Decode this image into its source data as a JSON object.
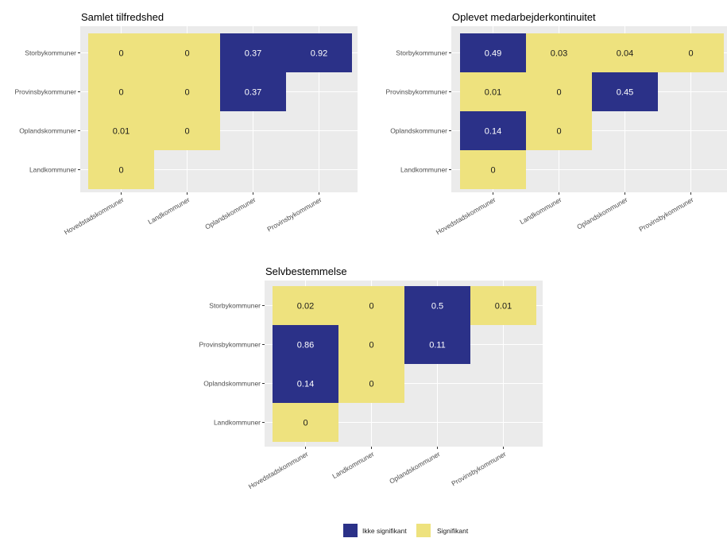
{
  "colors": {
    "panel_bg": "#ebebeb",
    "grid": "#ffffff",
    "ikke_signifikant": "#2b3188",
    "signifikant": "#eee27e",
    "axis_text": "#4d4d4d",
    "title_text": "#000000"
  },
  "legend": {
    "position": "bottom",
    "items": [
      {
        "label": "Ikke signifikant",
        "color": "#2b3188"
      },
      {
        "label": "Signifikant",
        "color": "#eee27e"
      }
    ]
  },
  "chart_data": [
    {
      "type": "heatmap",
      "title": "Samlet tilfredshed",
      "x_categories": [
        "Hovedstadskommuner",
        "Landkommuner",
        "Oplandskommuner",
        "Provinsbykommuner"
      ],
      "y_categories": [
        "Storbykommuner",
        "Provinsbykommuner",
        "Oplandskommuner",
        "Landkommuner"
      ],
      "cells": [
        {
          "x": "Hovedstadskommuner",
          "y": "Storbykommuner",
          "value": 0,
          "label": "0",
          "group": "Signifikant"
        },
        {
          "x": "Landkommuner",
          "y": "Storbykommuner",
          "value": 0,
          "label": "0",
          "group": "Signifikant"
        },
        {
          "x": "Oplandskommuner",
          "y": "Storbykommuner",
          "value": 0.37,
          "label": "0.37",
          "group": "Ikke signifikant"
        },
        {
          "x": "Provinsbykommuner",
          "y": "Storbykommuner",
          "value": 0.92,
          "label": "0.92",
          "group": "Ikke signifikant"
        },
        {
          "x": "Hovedstadskommuner",
          "y": "Provinsbykommuner",
          "value": 0,
          "label": "0",
          "group": "Signifikant"
        },
        {
          "x": "Landkommuner",
          "y": "Provinsbykommuner",
          "value": 0,
          "label": "0",
          "group": "Signifikant"
        },
        {
          "x": "Oplandskommuner",
          "y": "Provinsbykommuner",
          "value": 0.37,
          "label": "0.37",
          "group": "Ikke signifikant"
        },
        {
          "x": "Hovedstadskommuner",
          "y": "Oplandskommuner",
          "value": 0.01,
          "label": "0.01",
          "group": "Signifikant"
        },
        {
          "x": "Landkommuner",
          "y": "Oplandskommuner",
          "value": 0,
          "label": "0",
          "group": "Signifikant"
        },
        {
          "x": "Hovedstadskommuner",
          "y": "Landkommuner",
          "value": 0,
          "label": "0",
          "group": "Signifikant"
        }
      ]
    },
    {
      "type": "heatmap",
      "title": "Oplevet medarbejderkontinuitet",
      "x_categories": [
        "Hovedstadskommuner",
        "Landkommuner",
        "Oplandskommuner",
        "Provinsbykommuner"
      ],
      "y_categories": [
        "Storbykommuner",
        "Provinsbykommuner",
        "Oplandskommuner",
        "Landkommuner"
      ],
      "cells": [
        {
          "x": "Hovedstadskommuner",
          "y": "Storbykommuner",
          "value": 0.49,
          "label": "0.49",
          "group": "Ikke signifikant"
        },
        {
          "x": "Landkommuner",
          "y": "Storbykommuner",
          "value": 0.03,
          "label": "0.03",
          "group": "Signifikant"
        },
        {
          "x": "Oplandskommuner",
          "y": "Storbykommuner",
          "value": 0.04,
          "label": "0.04",
          "group": "Signifikant"
        },
        {
          "x": "Provinsbykommuner",
          "y": "Storbykommuner",
          "value": 0,
          "label": "0",
          "group": "Signifikant"
        },
        {
          "x": "Hovedstadskommuner",
          "y": "Provinsbykommuner",
          "value": 0.01,
          "label": "0.01",
          "group": "Signifikant"
        },
        {
          "x": "Landkommuner",
          "y": "Provinsbykommuner",
          "value": 0,
          "label": "0",
          "group": "Signifikant"
        },
        {
          "x": "Oplandskommuner",
          "y": "Provinsbykommuner",
          "value": 0.45,
          "label": "0.45",
          "group": "Ikke signifikant"
        },
        {
          "x": "Hovedstadskommuner",
          "y": "Oplandskommuner",
          "value": 0.14,
          "label": "0.14",
          "group": "Ikke signifikant"
        },
        {
          "x": "Landkommuner",
          "y": "Oplandskommuner",
          "value": 0,
          "label": "0",
          "group": "Signifikant"
        },
        {
          "x": "Hovedstadskommuner",
          "y": "Landkommuner",
          "value": 0,
          "label": "0",
          "group": "Signifikant"
        }
      ]
    },
    {
      "type": "heatmap",
      "title": "Selvbestemmelse",
      "x_categories": [
        "Hovedstadskommuner",
        "Landkommuner",
        "Oplandskommuner",
        "Provinsbykommuner"
      ],
      "y_categories": [
        "Storbykommuner",
        "Provinsbykommuner",
        "Oplandskommuner",
        "Landkommuner"
      ],
      "cells": [
        {
          "x": "Hovedstadskommuner",
          "y": "Storbykommuner",
          "value": 0.02,
          "label": "0.02",
          "group": "Signifikant"
        },
        {
          "x": "Landkommuner",
          "y": "Storbykommuner",
          "value": 0,
          "label": "0",
          "group": "Signifikant"
        },
        {
          "x": "Oplandskommuner",
          "y": "Storbykommuner",
          "value": 0.5,
          "label": "0.5",
          "group": "Ikke signifikant"
        },
        {
          "x": "Provinsbykommuner",
          "y": "Storbykommuner",
          "value": 0.01,
          "label": "0.01",
          "group": "Signifikant"
        },
        {
          "x": "Hovedstadskommuner",
          "y": "Provinsbykommuner",
          "value": 0.86,
          "label": "0.86",
          "group": "Ikke signifikant"
        },
        {
          "x": "Landkommuner",
          "y": "Provinsbykommuner",
          "value": 0,
          "label": "0",
          "group": "Signifikant"
        },
        {
          "x": "Oplandskommuner",
          "y": "Provinsbykommuner",
          "value": 0.11,
          "label": "0.11",
          "group": "Ikke signifikant"
        },
        {
          "x": "Hovedstadskommuner",
          "y": "Oplandskommuner",
          "value": 0.14,
          "label": "0.14",
          "group": "Ikke signifikant"
        },
        {
          "x": "Landkommuner",
          "y": "Oplandskommuner",
          "value": 0,
          "label": "0",
          "group": "Signifikant"
        },
        {
          "x": "Hovedstadskommuner",
          "y": "Landkommuner",
          "value": 0,
          "label": "0",
          "group": "Signifikant"
        }
      ]
    }
  ]
}
